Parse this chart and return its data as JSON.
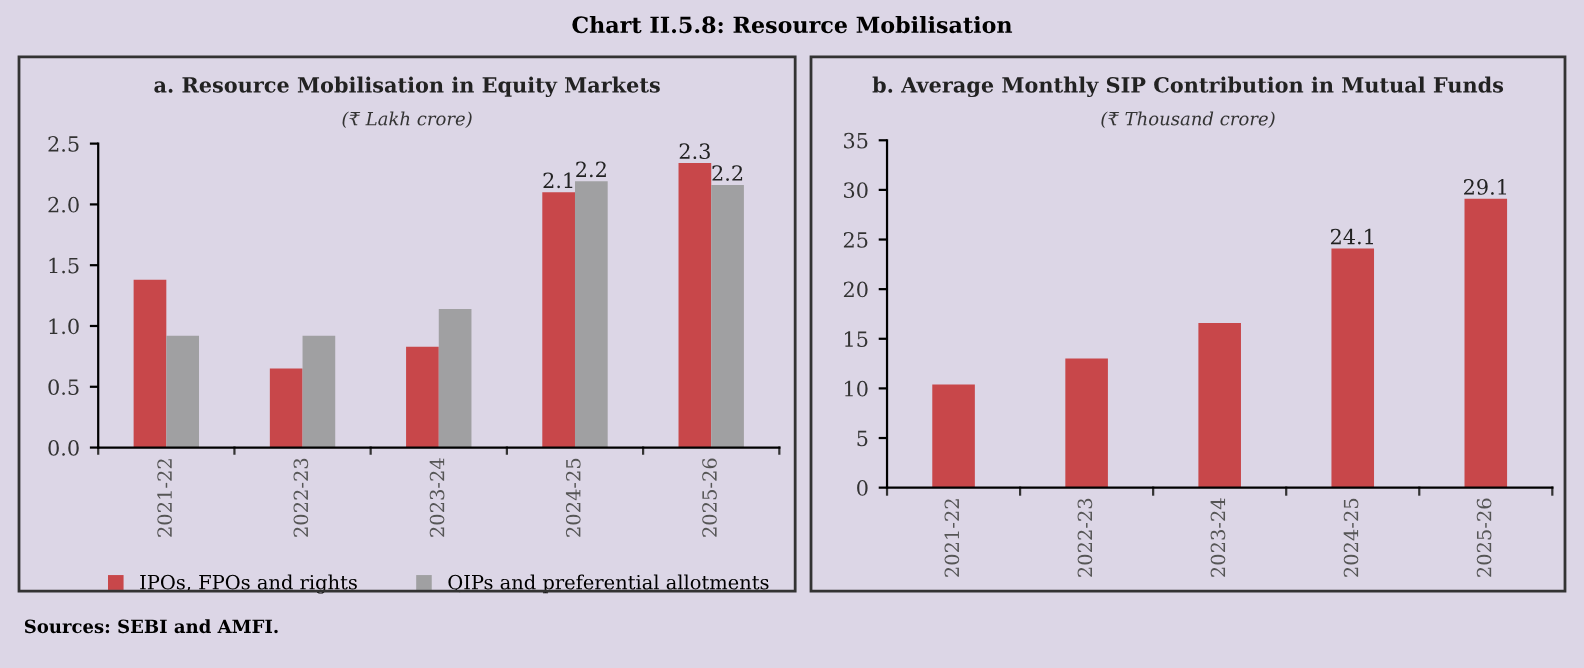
{
  "chart_data": [
    {
      "type": "bar",
      "title": "a. Resource Mobilisation in Equity Markets",
      "subtitle": "(₹ Lakh crore)",
      "annotations": [
        "Chart II.5.8: Resource Mobilisation",
        "Sources: SEBI and AMFI."
      ],
      "categories": [
        "2021-22",
        "2022-23",
        "2023-24",
        "2024-25",
        "2025-26"
      ],
      "series": [
        {
          "name": "IPOs, FPOs and rights",
          "color": "#c8474a",
          "values": [
            1.38,
            0.65,
            0.83,
            2.1,
            2.34
          ],
          "value_labels": [
            null,
            null,
            null,
            "2.1",
            "2.3"
          ]
        },
        {
          "name": "QIPs and preferential allotments",
          "color": "#a0a0a2",
          "values": [
            0.92,
            0.92,
            1.14,
            2.19,
            2.16
          ],
          "value_labels": [
            null,
            null,
            null,
            "2.2",
            "2.2"
          ]
        }
      ],
      "ylim": [
        0,
        2.5
      ],
      "yticks": [
        "0.0",
        "0.5",
        "1.0",
        "1.5",
        "2.0",
        "2.5"
      ],
      "grid": false,
      "legend": "bottom"
    },
    {
      "type": "bar",
      "title": "b. Average Monthly SIP Contribution in Mutual Funds",
      "subtitle": "(₹ Thousand crore)",
      "categories": [
        "2021-22",
        "2022-23",
        "2023-24",
        "2024-25",
        "2025-26"
      ],
      "series": [
        {
          "color": "#c8474a",
          "values": [
            10.4,
            13.0,
            16.6,
            24.1,
            29.1
          ],
          "value_labels": [
            null,
            null,
            null,
            "24.1",
            "29.1"
          ]
        }
      ],
      "ylim": [
        0,
        35
      ],
      "yticks": [
        0,
        5,
        10,
        15,
        20,
        25,
        30,
        35
      ],
      "grid": false,
      "legend": false
    }
  ]
}
